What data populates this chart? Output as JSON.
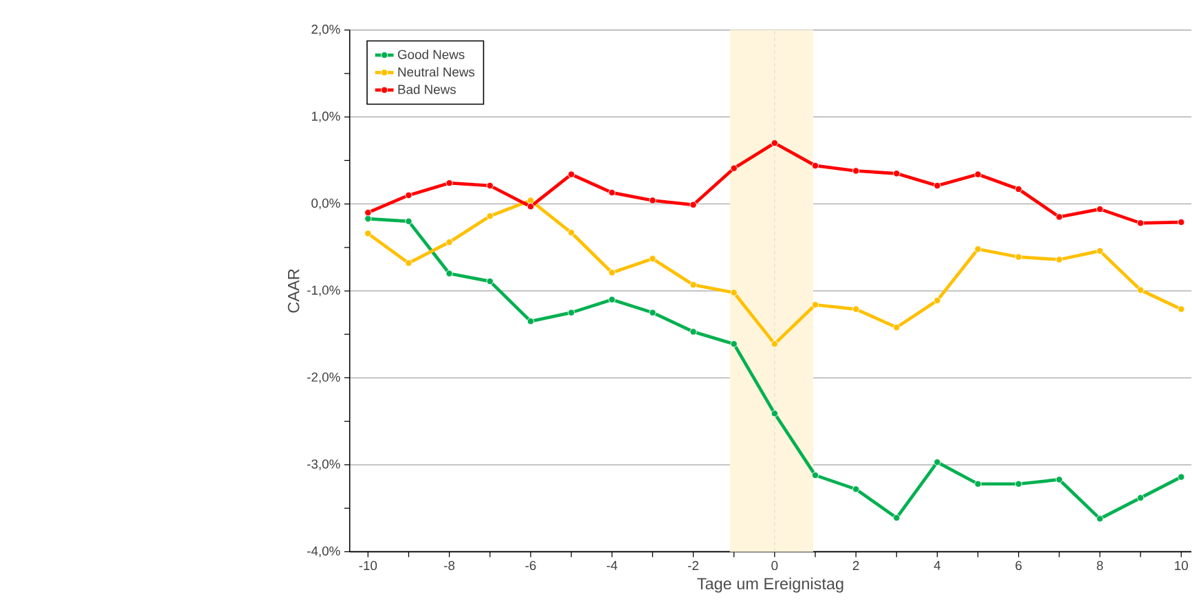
{
  "chart_data": {
    "type": "line",
    "xlabel": "Tage um Ereignistag",
    "ylabel": "CAAR",
    "x": [
      -10,
      -9,
      -8,
      -7,
      -6,
      -5,
      -4,
      -3,
      -2,
      -1,
      0,
      1,
      2,
      3,
      4,
      5,
      6,
      7,
      8,
      9,
      10
    ],
    "series": [
      {
        "name": "Good News",
        "color": "#00b050",
        "values": [
          -0.17,
          -0.2,
          -0.8,
          -0.89,
          -1.35,
          -1.25,
          -1.1,
          -1.25,
          -1.47,
          -1.61,
          -2.41,
          -3.12,
          -3.28,
          -3.61,
          -2.97,
          -3.22,
          -3.22,
          -3.17,
          -3.62,
          -3.38,
          -3.14
        ]
      },
      {
        "name": "Neutral News",
        "color": "#ffc000",
        "values": [
          -0.34,
          -0.68,
          -0.44,
          -0.14,
          0.04,
          -0.33,
          -0.79,
          -0.63,
          -0.93,
          -1.02,
          -1.61,
          -1.16,
          -1.21,
          -1.42,
          -1.11,
          -0.52,
          -0.61,
          -0.64,
          -0.54,
          -0.99,
          -1.21
        ]
      },
      {
        "name": "Bad News",
        "color": "#ff0000",
        "values": [
          -0.1,
          0.1,
          0.24,
          0.21,
          -0.03,
          0.34,
          0.13,
          0.04,
          -0.01,
          0.41,
          0.7,
          0.44,
          0.38,
          0.35,
          0.21,
          0.34,
          0.17,
          -0.15,
          -0.06,
          -0.22,
          -0.21
        ]
      }
    ],
    "xlim": [
      -10.45,
      10.25
    ],
    "ylim": [
      -4,
      2
    ],
    "xticks": [
      -10,
      {
        "value": -9,
        "label": null
      },
      -8,
      {
        "value": -7,
        "label": null
      },
      -6,
      {
        "value": -5,
        "label": null
      },
      -4,
      {
        "value": -3,
        "label": null
      },
      -2,
      {
        "value": -1,
        "label": null
      },
      0,
      {
        "value": 1,
        "label": null
      },
      2,
      {
        "value": 3,
        "label": null
      },
      4,
      {
        "value": 5,
        "label": null
      },
      6,
      {
        "value": 7,
        "label": null
      },
      8,
      {
        "value": 9,
        "label": null
      },
      10
    ],
    "yticks": [
      {
        "value": -4,
        "label": "-4,0%"
      },
      {
        "value": -3.5,
        "label": null
      },
      {
        "value": -3,
        "label": "-3,0%"
      },
      {
        "value": -2.5,
        "label": null
      },
      {
        "value": -2,
        "label": "-2,0%"
      },
      {
        "value": -1.5,
        "label": null
      },
      {
        "value": -1,
        "label": "-1,0%"
      },
      {
        "value": -0.5,
        "label": null
      },
      {
        "value": 0,
        "label": "0,0%"
      },
      {
        "value": 0.5,
        "label": null
      },
      {
        "value": 1,
        "label": "1,0%"
      },
      {
        "value": 1.5,
        "label": null
      },
      {
        "value": 2,
        "label": "2,0%"
      }
    ],
    "bands": [
      {
        "axis": "x",
        "from": -1.1,
        "to": 0.95,
        "color": "#fff5dc"
      }
    ],
    "ref_lines": [
      {
        "axis": "x",
        "value": 0,
        "color": "#c8c8c8",
        "line_style": "dashed"
      }
    ],
    "grid": "y",
    "legend": "top left",
    "marker": "circle",
    "line_style": "solid"
  }
}
